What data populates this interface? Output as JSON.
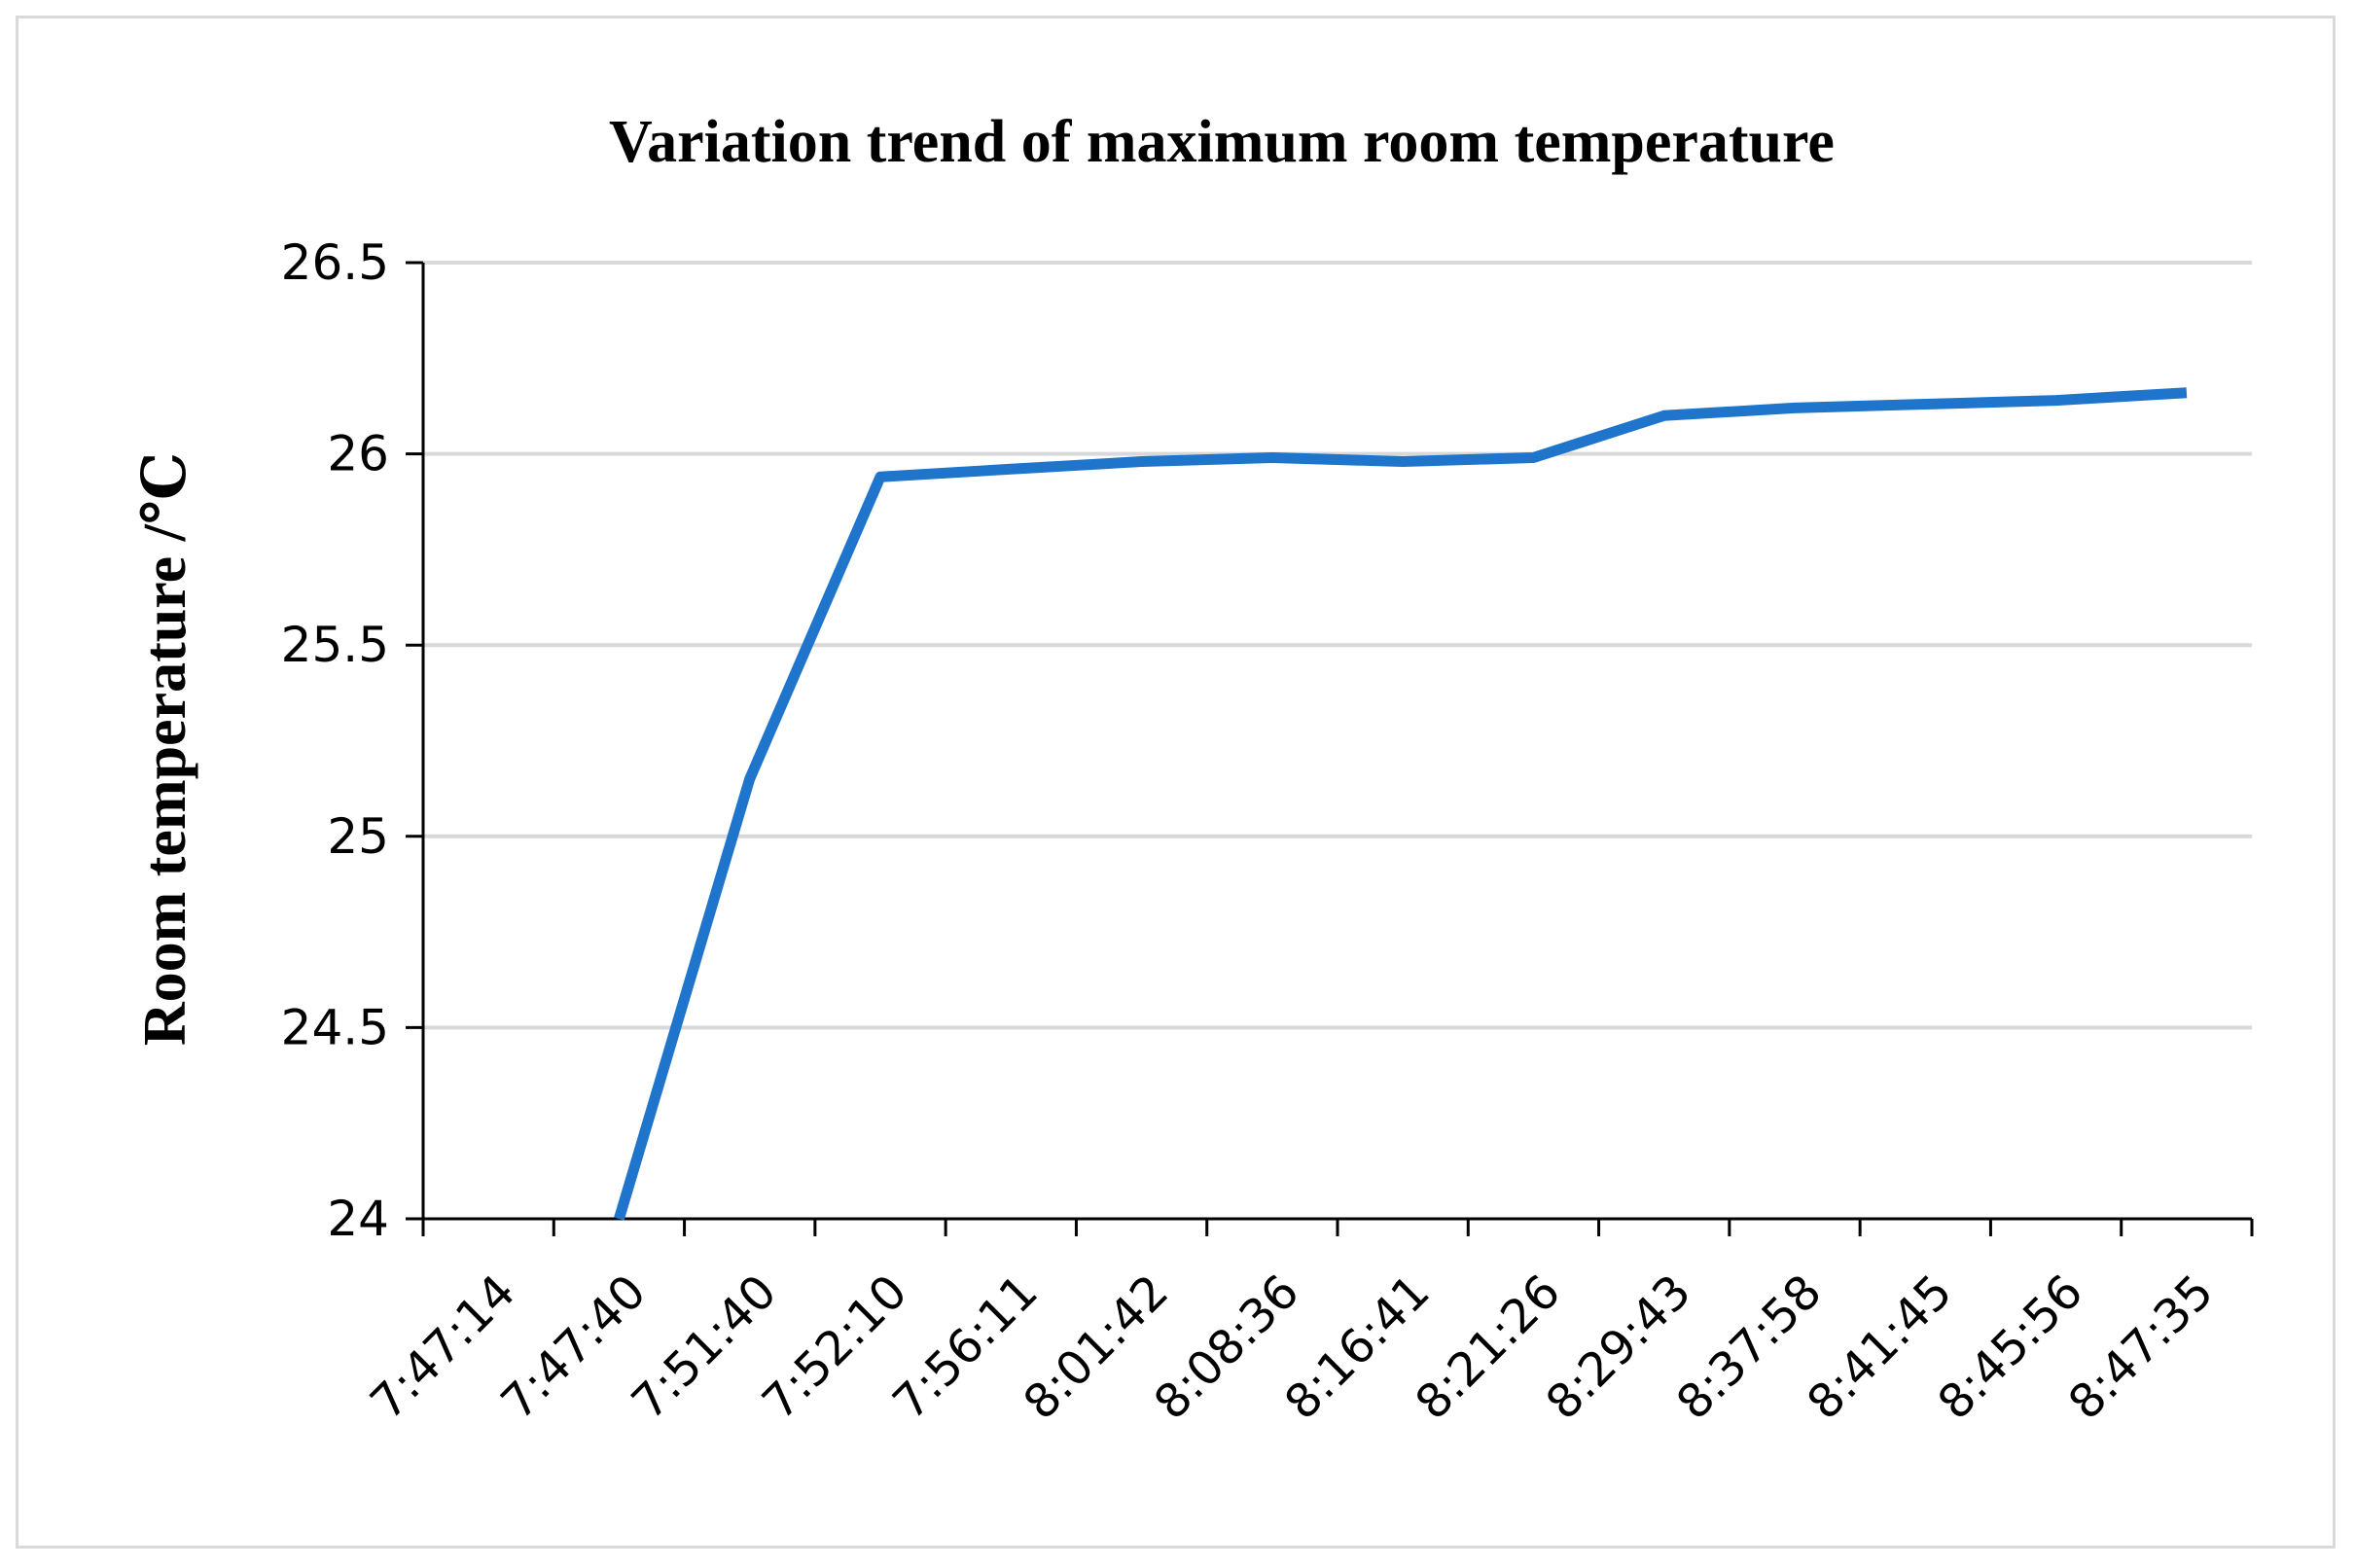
{
  "chart_data": {
    "type": "line",
    "title": "Variation trend of maximum room temperature",
    "xlabel": "",
    "ylabel": "Room temperature /℃",
    "categories": [
      "7:47:14",
      "7:47:40",
      "7:51:40",
      "7:52:10",
      "7:56:11",
      "8:01:42",
      "8:08:36",
      "8:16:41",
      "8:21:26",
      "8:29:43",
      "8:37:58",
      "8:41:45",
      "8:45:56",
      "8:47:35"
    ],
    "series": [
      {
        "values": [
          null,
          24.0,
          25.15,
          25.94,
          25.96,
          25.98,
          25.99,
          25.98,
          25.99,
          26.1,
          26.12,
          26.13,
          26.14,
          26.16
        ]
      }
    ],
    "yticks": [
      "24",
      "24.5",
      "25",
      "25.5",
      "26",
      "26.5"
    ],
    "ylim": [
      24,
      26.5
    ],
    "grid": true,
    "legend": "none",
    "colors": {
      "line": "#1f74cc",
      "grid": "#d9d9d9",
      "axis": "#000000"
    }
  }
}
